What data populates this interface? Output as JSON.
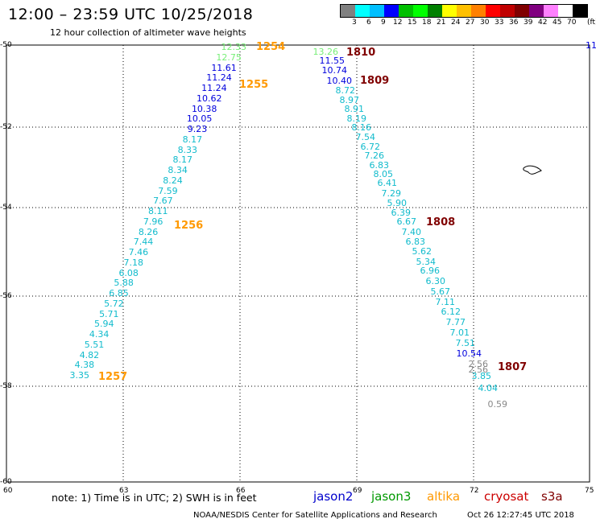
{
  "header": {
    "title": "12:00 – 23:59 UTC 10/25/2018",
    "subtitle": "12 hour collection of altimeter wave heights"
  },
  "legend": {
    "swatches": [
      "#808080",
      "#00ffff",
      "#00bfff",
      "#0000ff",
      "#00c000",
      "#00ff00",
      "#008000",
      "#ffff00",
      "#ffc000",
      "#ff8000",
      "#ff0000",
      "#c00000",
      "#800000",
      "#800080",
      "#ff80ff",
      "#ffffff",
      "#000000"
    ],
    "labels": [
      "3",
      "6",
      "9",
      "12",
      "15",
      "18",
      "21",
      "24",
      "27",
      "30",
      "33",
      "36",
      "39",
      "42",
      "45",
      "70"
    ],
    "unit": "(ft)"
  },
  "axes": {
    "x_ticks": [
      "60",
      "63",
      "66",
      "69",
      "72",
      "75"
    ],
    "y_ticks": [
      "-50",
      "-52",
      "-54",
      "-56",
      "-58",
      "-60"
    ]
  },
  "edge_label": "11",
  "passes": [
    {
      "label": "1254",
      "color": "#ff9900"
    },
    {
      "label": "1255",
      "color": "#ff9900"
    },
    {
      "label": "1256",
      "color": "#ff9900"
    },
    {
      "label": "1257",
      "color": "#ff9900"
    },
    {
      "label": "1810",
      "color": "#800000"
    },
    {
      "label": "1809",
      "color": "#800000"
    },
    {
      "label": "1808",
      "color": "#800000"
    },
    {
      "label": "1807",
      "color": "#800000"
    }
  ],
  "track_west": [
    {
      "v": "12.33",
      "c": "#77ee77"
    },
    {
      "v": "12.75",
      "c": "#77ee77"
    },
    {
      "v": "11.61",
      "c": "#0000dd"
    },
    {
      "v": "11.24",
      "c": "#0000dd"
    },
    {
      "v": "11.24",
      "c": "#0000dd"
    },
    {
      "v": "10.62",
      "c": "#0000dd"
    },
    {
      "v": "10.38",
      "c": "#0000dd"
    },
    {
      "v": "10.05",
      "c": "#0000dd"
    },
    {
      "v": "9.23",
      "c": "#0000dd"
    },
    {
      "v": "8.17",
      "c": "#11bbcc"
    },
    {
      "v": "8.33",
      "c": "#11bbcc"
    },
    {
      "v": "8.17",
      "c": "#11bbcc"
    },
    {
      "v": "8.34",
      "c": "#11bbcc"
    },
    {
      "v": "8.24",
      "c": "#11bbcc"
    },
    {
      "v": "7.59",
      "c": "#11bbcc"
    },
    {
      "v": "7.67",
      "c": "#11bbcc"
    },
    {
      "v": "8.11",
      "c": "#11bbcc"
    },
    {
      "v": "7.96",
      "c": "#11bbcc"
    },
    {
      "v": "8.26",
      "c": "#11bbcc"
    },
    {
      "v": "7.44",
      "c": "#11bbcc"
    },
    {
      "v": "7.46",
      "c": "#11bbcc"
    },
    {
      "v": "7.18",
      "c": "#11bbcc"
    },
    {
      "v": "6.08",
      "c": "#11bbcc"
    },
    {
      "v": "5.88",
      "c": "#11bbcc"
    },
    {
      "v": "6.85",
      "c": "#11bbcc"
    },
    {
      "v": "5.72",
      "c": "#11bbcc"
    },
    {
      "v": "5.71",
      "c": "#11bbcc"
    },
    {
      "v": "5.94",
      "c": "#11bbcc"
    },
    {
      "v": "4.34",
      "c": "#11bbcc"
    },
    {
      "v": "5.51",
      "c": "#11bbcc"
    },
    {
      "v": "4.82",
      "c": "#11bbcc"
    },
    {
      "v": "4.38",
      "c": "#11bbcc"
    },
    {
      "v": "3.35",
      "c": "#11bbcc"
    }
  ],
  "track_east": [
    {
      "v": "13.26",
      "c": "#77ee77"
    },
    {
      "v": "11.55",
      "c": "#0000dd"
    },
    {
      "v": "10.74",
      "c": "#0000dd"
    },
    {
      "v": "10.40",
      "c": "#0000dd"
    },
    {
      "v": "8.72",
      "c": "#11bbcc"
    },
    {
      "v": "8.97",
      "c": "#11bbcc"
    },
    {
      "v": "8.91",
      "c": "#11bbcc"
    },
    {
      "v": "8.19",
      "c": "#11bbcc"
    },
    {
      "v": "8.16",
      "c": "#11bbcc"
    },
    {
      "v": "7.54",
      "c": "#11bbcc"
    },
    {
      "v": "6.72",
      "c": "#11bbcc"
    },
    {
      "v": "7.26",
      "c": "#11bbcc"
    },
    {
      "v": "6.83",
      "c": "#11bbcc"
    },
    {
      "v": "8.05",
      "c": "#11bbcc"
    },
    {
      "v": "6.41",
      "c": "#11bbcc"
    },
    {
      "v": "7.29",
      "c": "#11bbcc"
    },
    {
      "v": "5.90",
      "c": "#11bbcc"
    },
    {
      "v": "6.39",
      "c": "#11bbcc"
    },
    {
      "v": "6.67",
      "c": "#11bbcc"
    },
    {
      "v": "7.40",
      "c": "#11bbcc"
    },
    {
      "v": "6.83",
      "c": "#11bbcc"
    },
    {
      "v": "5.62",
      "c": "#11bbcc"
    },
    {
      "v": "5.34",
      "c": "#11bbcc"
    },
    {
      "v": "6.96",
      "c": "#11bbcc"
    },
    {
      "v": "6.30",
      "c": "#11bbcc"
    },
    {
      "v": "5.67",
      "c": "#11bbcc"
    },
    {
      "v": "7.11",
      "c": "#11bbcc"
    },
    {
      "v": "6.12",
      "c": "#11bbcc"
    },
    {
      "v": "7.77",
      "c": "#11bbcc"
    },
    {
      "v": "7.01",
      "c": "#11bbcc"
    },
    {
      "v": "7.51",
      "c": "#11bbcc"
    },
    {
      "v": "10.54",
      "c": "#0000dd"
    },
    {
      "v": "2.56",
      "c": "#888888"
    },
    {
      "v": "2.56",
      "c": "#888888"
    },
    {
      "v": "3.85",
      "c": "#11bbcc"
    },
    {
      "v": "4.04",
      "c": "#11bbcc"
    },
    {
      "v": "0.59",
      "c": "#888888"
    }
  ],
  "note": "note: 1) Time is in UTC; 2) SWH is in feet",
  "satellites": [
    {
      "name": "jason2",
      "color": "#0000cc"
    },
    {
      "name": "jason3",
      "color": "#009900"
    },
    {
      "name": "altika",
      "color": "#ff9900"
    },
    {
      "name": "cryosat",
      "color": "#cc0000"
    },
    {
      "name": "s3a",
      "color": "#800000"
    }
  ],
  "footer": {
    "credit": "NOAA/NESDIS Center for Satellite Applications and Research",
    "timestamp": "Oct 26 12:27:45 UTC 2018"
  }
}
